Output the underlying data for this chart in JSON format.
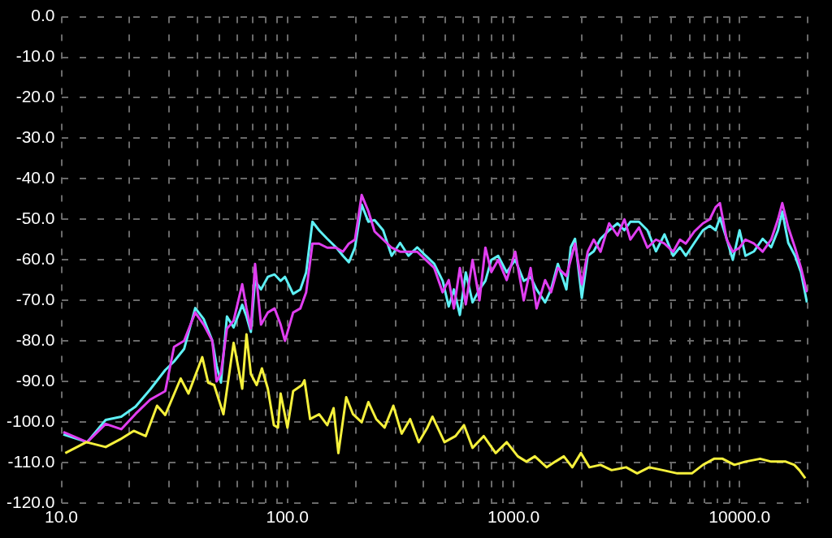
{
  "chart_data": {
    "type": "line",
    "log": "x",
    "grid": true,
    "marker": "none",
    "line_style": "solid",
    "legend": false,
    "xlim": [
      10,
      20000
    ],
    "xticks": [
      {
        "value": 10,
        "label": "10.0"
      },
      {
        "value": 20,
        "label": null
      },
      {
        "value": 30,
        "label": null
      },
      {
        "value": 40,
        "label": null
      },
      {
        "value": 50,
        "label": null
      },
      {
        "value": 60,
        "label": null
      },
      {
        "value": 70,
        "label": null
      },
      {
        "value": 80,
        "label": null
      },
      {
        "value": 90,
        "label": null
      },
      {
        "value": 100,
        "label": "100.0"
      },
      {
        "value": 200,
        "label": null
      },
      {
        "value": 300,
        "label": null
      },
      {
        "value": 400,
        "label": null
      },
      {
        "value": 500,
        "label": null
      },
      {
        "value": 600,
        "label": null
      },
      {
        "value": 700,
        "label": null
      },
      {
        "value": 800,
        "label": null
      },
      {
        "value": 900,
        "label": null
      },
      {
        "value": 1000,
        "label": "1000.0"
      },
      {
        "value": 2000,
        "label": null
      },
      {
        "value": 3000,
        "label": null
      },
      {
        "value": 4000,
        "label": null
      },
      {
        "value": 5000,
        "label": null
      },
      {
        "value": 6000,
        "label": null
      },
      {
        "value": 7000,
        "label": null
      },
      {
        "value": 8000,
        "label": null
      },
      {
        "value": 9000,
        "label": null
      },
      {
        "value": 10000,
        "label": "10000.0"
      },
      {
        "value": 20000,
        "label": null
      }
    ],
    "ylim": [
      -120,
      0
    ],
    "yticks": [
      {
        "value": 0,
        "label": "0.0"
      },
      {
        "value": -10,
        "label": "-10.0"
      },
      {
        "value": -20,
        "label": "-20.0"
      },
      {
        "value": -30,
        "label": "-30.0"
      },
      {
        "value": -40,
        "label": "-40.0"
      },
      {
        "value": -50,
        "label": "-50.0"
      },
      {
        "value": -60,
        "label": "-60.0"
      },
      {
        "value": -70,
        "label": "-70.0"
      },
      {
        "value": -80,
        "label": "-80.0"
      },
      {
        "value": -90,
        "label": "-90.0"
      },
      {
        "value": -100,
        "label": "-100.0"
      },
      {
        "value": -110,
        "label": "-110.0"
      },
      {
        "value": -120,
        "label": "-120.0"
      }
    ],
    "series": [
      {
        "color": "#f5f03c",
        "x": [
          10.4,
          12.9,
          15.7,
          18.2,
          20.9,
          23.6,
          26.5,
          28.8,
          33.7,
          36.5,
          42,
          44.6,
          47.4,
          52.1,
          57.8,
          63.1,
          65.9,
          68.9,
          73.1,
          77.1,
          81.9,
          87.1,
          90.8,
          93.3,
          100,
          106,
          116,
          119,
          126,
          138,
          150,
          160,
          168,
          182,
          195,
          213,
          228,
          247,
          269,
          294,
          320,
          349,
          381,
          416,
          438,
          495,
          554,
          604,
          659,
          738,
          834,
          933,
          1045,
          1140,
          1243,
          1403,
          1531,
          1670,
          1820,
          1987,
          2167,
          2426,
          2716,
          3150,
          3524,
          3981,
          4571,
          5305,
          6152,
          6887,
          7709,
          8414,
          9484,
          10620,
          12330,
          13800,
          16000,
          17460,
          18380,
          19530
        ],
        "values": [
          -107.7,
          -105,
          -106.2,
          -104.3,
          -102.2,
          -103.5,
          -96,
          -98.3,
          -89.3,
          -93,
          -84,
          -90.3,
          -90.9,
          -98.1,
          -80.5,
          -91.8,
          -78.4,
          -88.2,
          -90.9,
          -86.8,
          -91.8,
          -100.8,
          -101.4,
          -93,
          -101.4,
          -92.4,
          -90.9,
          -89.7,
          -99.3,
          -98.1,
          -100.8,
          -96.6,
          -107.7,
          -93.9,
          -98.1,
          -100.1,
          -95.1,
          -99.3,
          -101.4,
          -96,
          -102.9,
          -99.3,
          -105,
          -101.4,
          -98.7,
          -105,
          -103.5,
          -100.8,
          -106.4,
          -103.5,
          -107.7,
          -105,
          -108.5,
          -109.8,
          -108.5,
          -111.2,
          -109.8,
          -108.5,
          -111.2,
          -107.7,
          -111.2,
          -110.6,
          -111.9,
          -111.2,
          -112.7,
          -111.2,
          -111.9,
          -112.7,
          -112.7,
          -110.6,
          -109.1,
          -109.1,
          -110.6,
          -109.8,
          -109.1,
          -109.8,
          -109.8,
          -110.6,
          -111.9,
          -113.9
        ]
      },
      {
        "color": "#e03ef0",
        "x": [
          10.2,
          13,
          15.7,
          18.4,
          21.3,
          24.7,
          28.8,
          31.5,
          34.9,
          39.1,
          42.6,
          46.5,
          48.6,
          50.8,
          54,
          57.8,
          63.1,
          65.9,
          68.9,
          71.9,
          76.4,
          81.9,
          87.7,
          93.3,
          97.5,
          106,
          114,
          121,
          129,
          138,
          150,
          164,
          176,
          187,
          199,
          213,
          228,
          243,
          265,
          289,
          315,
          343,
          375,
          409,
          446,
          486,
          517,
          545,
          579,
          615,
          659,
          707,
          751,
          798,
          855,
          933,
          1018,
          1110,
          1190,
          1265,
          1380,
          1466,
          1571,
          1714,
          1791,
          1871,
          2005,
          2130,
          2264,
          2426,
          2648,
          2886,
          3095,
          3289,
          3589,
          3912,
          4266,
          4656,
          5082,
          5445,
          5782,
          6310,
          6887,
          7383,
          7834,
          8185,
          8770,
          9333,
          10000,
          10620,
          11590,
          12650,
          13800,
          14790,
          15450,
          16420,
          17590,
          18700,
          19860
        ],
        "values": [
          -102.5,
          -105,
          -100.5,
          -101.8,
          -98,
          -94.5,
          -92.4,
          -81.5,
          -80,
          -73,
          -76,
          -80,
          -90,
          -88,
          -77,
          -75,
          -66,
          -72,
          -77,
          -61,
          -76,
          -73,
          -72,
          -76,
          -80,
          -73,
          -72,
          -68,
          -56,
          -56,
          -57,
          -57,
          -58,
          -56,
          -55,
          -44,
          -48,
          -53,
          -55,
          -57,
          -58,
          -58,
          -58,
          -60,
          -62,
          -68,
          -65,
          -72,
          -62,
          -71,
          -60,
          -70,
          -57,
          -63,
          -60,
          -65,
          -58,
          -70,
          -62,
          -72,
          -65,
          -68,
          -62,
          -64,
          -60,
          -56,
          -66,
          -58,
          -55,
          -58,
          -51,
          -54,
          -50,
          -55,
          -52,
          -57,
          -55,
          -56,
          -58,
          -55,
          -56,
          -53,
          -51,
          -50,
          -47,
          -46,
          -55,
          -58,
          -57,
          -55,
          -56,
          -58,
          -55,
          -50,
          -46,
          -52,
          -57,
          -62,
          -68
        ]
      },
      {
        "color": "#5ef0f5",
        "x": [
          10.2,
          13,
          15.7,
          18.4,
          21.3,
          24.7,
          28.8,
          31.5,
          34.9,
          39.1,
          42.6,
          46.5,
          48.6,
          50.8,
          54,
          57.8,
          63.1,
          65.9,
          68.9,
          71.9,
          76.4,
          81.9,
          87.7,
          93.3,
          97.5,
          106,
          114,
          121,
          129,
          138,
          150,
          164,
          176,
          187,
          199,
          213,
          228,
          243,
          265,
          289,
          315,
          343,
          375,
          409,
          446,
          486,
          517,
          545,
          579,
          615,
          659,
          707,
          751,
          798,
          855,
          933,
          1018,
          1110,
          1190,
          1265,
          1380,
          1466,
          1571,
          1714,
          1791,
          1871,
          2005,
          2130,
          2264,
          2426,
          2648,
          2886,
          3095,
          3289,
          3589,
          3912,
          4266,
          4656,
          5082,
          5445,
          5782,
          6310,
          6887,
          7383,
          7834,
          8185,
          8770,
          9333,
          10000,
          10620,
          11590,
          12650,
          13800,
          14790,
          15450,
          16420,
          17590,
          18700,
          19860
        ],
        "values": [
          -103.1,
          -105,
          -99.5,
          -98.7,
          -96.2,
          -92,
          -87.2,
          -85.1,
          -82,
          -71.9,
          -74.6,
          -79.9,
          -86.1,
          -90.3,
          -74,
          -76.7,
          -71.1,
          -74,
          -77.8,
          -65.2,
          -67.3,
          -64.2,
          -63.6,
          -65.2,
          -64.2,
          -68.4,
          -67.3,
          -63.1,
          -50.6,
          -52.7,
          -54.8,
          -56.9,
          -59,
          -60.6,
          -56.9,
          -46.4,
          -50.6,
          -50.2,
          -52.7,
          -59,
          -55.8,
          -59,
          -56.9,
          -59,
          -61,
          -65.2,
          -71.5,
          -67.3,
          -73.6,
          -63.1,
          -70.5,
          -67.3,
          -65.2,
          -60,
          -59,
          -63.1,
          -60,
          -65.2,
          -64.2,
          -67.3,
          -70.5,
          -67.3,
          -61,
          -67.3,
          -56.9,
          -54.8,
          -69.4,
          -59,
          -57.9,
          -54.8,
          -52.7,
          -51,
          -52.7,
          -50.6,
          -50.6,
          -52.7,
          -57.9,
          -53.7,
          -59,
          -56.9,
          -59,
          -55.8,
          -52.7,
          -51.6,
          -52.7,
          -49.6,
          -54.8,
          -60,
          -52.7,
          -59,
          -57.9,
          -54.8,
          -56.9,
          -52.7,
          -48.1,
          -55.8,
          -59,
          -63.1,
          -70.5
        ]
      }
    ]
  }
}
